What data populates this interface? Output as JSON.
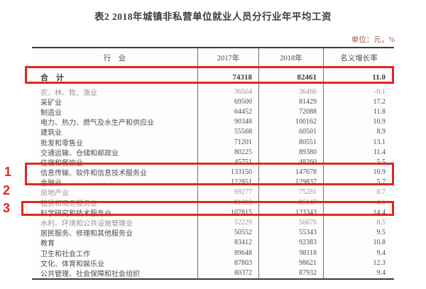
{
  "title": "表2  2018年城镇非私营单位就业人员分行业年平均工资",
  "unit_note": "单位：元，%",
  "accent_red": "#e42520",
  "table": {
    "headers": [
      "行　业",
      "2017年",
      "2018年",
      "名义增长率"
    ],
    "total_row": {
      "industry": "合　计",
      "y2017": "74318",
      "y2018": "82461",
      "growth": "11.0"
    },
    "rows": [
      {
        "industry": "农、林、牧、渔业",
        "y2017": "36504",
        "y2018": "36466",
        "growth": "-0.1"
      },
      {
        "industry": "采矿业",
        "y2017": "69500",
        "y2018": "81429",
        "growth": "17.2"
      },
      {
        "industry": "制造业",
        "y2017": "64452",
        "y2018": "72088",
        "growth": "11.8"
      },
      {
        "industry": "电力、热力、燃气及水生产和供应业",
        "y2017": "90348",
        "y2018": "100162",
        "growth": "10.9"
      },
      {
        "industry": "建筑业",
        "y2017": "55568",
        "y2018": "60501",
        "growth": "8.9"
      },
      {
        "industry": "批发和零售业",
        "y2017": "71201",
        "y2018": "80551",
        "growth": "13.1"
      },
      {
        "industry": "交通运输、仓储和邮政业",
        "y2017": "80225",
        "y2018": "89380",
        "growth": "11.4"
      },
      {
        "industry": "住宿和餐饮业",
        "y2017": "45751",
        "y2018": "48260",
        "growth": "5.5"
      },
      {
        "industry": "信息传输、软件和信息技术服务业",
        "y2017": "133150",
        "y2018": "147678",
        "growth": "10.9"
      },
      {
        "industry": "金融业",
        "y2017": "122851",
        "y2018": "129837",
        "growth": "5.7"
      },
      {
        "industry": "房地产业",
        "y2017": "69277",
        "y2018": "75281",
        "growth": "8.7"
      },
      {
        "industry": "租赁和商务服务业",
        "y2017": "81393",
        "y2018": "85147",
        "growth": "4.6"
      },
      {
        "industry": "科学研究和技术服务业",
        "y2017": "107815",
        "y2018": "123343",
        "growth": "14.4"
      },
      {
        "industry": "水利、环境和公共设施管理业",
        "y2017": "52229",
        "y2018": "56670",
        "growth": "8.5"
      },
      {
        "industry": "居民服务、修理和其他服务业",
        "y2017": "50552",
        "y2018": "55343",
        "growth": "9.5"
      },
      {
        "industry": "教育",
        "y2017": "83412",
        "y2018": "92383",
        "growth": "10.8"
      },
      {
        "industry": "卫生和社会工作",
        "y2017": "89648",
        "y2018": "98118",
        "growth": "9.4"
      },
      {
        "industry": "文化、体育和娱乐业",
        "y2017": "87803",
        "y2018": "98621",
        "growth": "12.3"
      },
      {
        "industry": "公共管理、社会保障和社会组织",
        "y2017": "80372",
        "y2018": "87932",
        "growth": "9.4"
      }
    ]
  },
  "annotations": {
    "markers": [
      "1",
      "2",
      "3"
    ]
  }
}
